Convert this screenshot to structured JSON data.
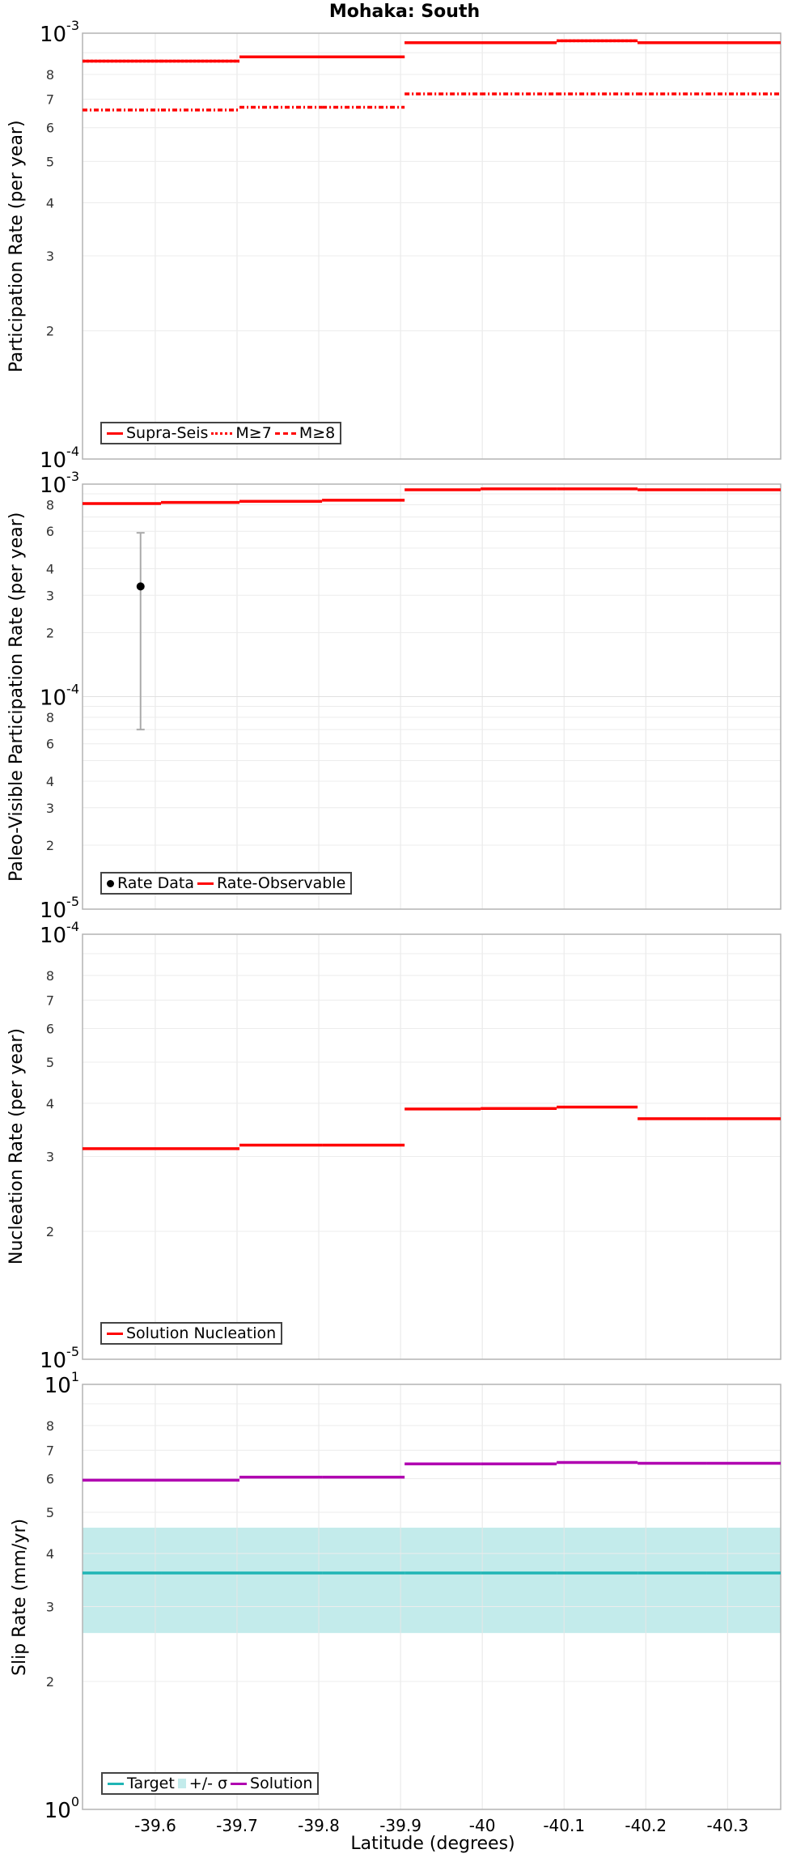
{
  "title": "Mohaka: South",
  "x_axis": {
    "label": "Latitude (degrees)",
    "ticks": [
      "-39.6",
      "-39.7",
      "-39.8",
      "-39.9",
      "-40",
      "-40.1",
      "-40.2",
      "-40.3"
    ],
    "range": [
      -39.511,
      -40.365
    ]
  },
  "panels": [
    {
      "ylabel": "Participation Rate (per year)",
      "ymin_label": "10",
      "ymin_exp": "-4",
      "ymax_label": "10",
      "ymax_exp": "-3",
      "minor_ticks": [
        "2",
        "3",
        "4",
        "5",
        "6",
        "7",
        "8"
      ],
      "legend": [
        {
          "label": "Supra-Seis",
          "style": "solid",
          "color": "#ff0000"
        },
        {
          "label": "M≥7",
          "style": "dot",
          "color": "#ff0000"
        },
        {
          "label": "M≥8",
          "style": "dashdot",
          "color": "#ff0000"
        }
      ]
    },
    {
      "ylabel": "Paleo-Visible Participation Rate (per year)",
      "ymin_label": "10",
      "ymin_exp": "-5",
      "mid_label": "10",
      "mid_exp": "-4",
      "ymax_label": "10",
      "ymax_exp": "-3",
      "minor_ticks": [
        "2",
        "3",
        "4",
        "6",
        "8"
      ],
      "legend": [
        {
          "label": "Rate Data",
          "style": "point",
          "color": "#000000"
        },
        {
          "label": "Rate-Observable",
          "style": "solid",
          "color": "#ff0000"
        }
      ]
    },
    {
      "ylabel": "Nucleation Rate (per year)",
      "ymin_label": "10",
      "ymin_exp": "-5",
      "ymax_label": "10",
      "ymax_exp": "-4",
      "minor_ticks": [
        "2",
        "3",
        "4",
        "5",
        "6",
        "7",
        "8"
      ],
      "legend": [
        {
          "label": "Solution Nucleation",
          "style": "solid",
          "color": "#ff0000"
        }
      ]
    },
    {
      "ylabel": "Slip Rate (mm/yr)",
      "ymin_label": "10",
      "ymin_exp": "0",
      "ymax_label": "10",
      "ymax_exp": "1",
      "minor_ticks": [
        "2",
        "3",
        "4",
        "5",
        "6",
        "7",
        "8"
      ],
      "legend": [
        {
          "label": "Target",
          "style": "solid",
          "color": "#1fb5b5"
        },
        {
          "label": "+/- σ",
          "style": "box",
          "color": "#c3ebeb"
        },
        {
          "label": "Solution",
          "style": "solid",
          "color": "#b000b0"
        }
      ]
    }
  ],
  "chart_data": [
    {
      "type": "line",
      "title": "Mohaka: South",
      "xlabel": "Latitude (degrees)",
      "ylabel": "Participation Rate (per year)",
      "yscale": "log",
      "ylim": [
        0.0001,
        0.001
      ],
      "x_edges": [
        -39.511,
        -39.607,
        -39.703,
        -39.804,
        -39.905,
        -39.998,
        -40.091,
        -40.19,
        -40.274,
        -40.365
      ],
      "series": [
        {
          "name": "Supra-Seis",
          "style": "solid",
          "values": [
            0.00086,
            0.00086,
            0.00088,
            0.00088,
            0.00095,
            0.00095,
            0.00096,
            0.00095,
            0.00095
          ]
        },
        {
          "name": "M≥7",
          "style": "dotted",
          "values": [
            0.00086,
            0.00086,
            0.00088,
            0.00088,
            0.00095,
            0.00095,
            0.00096,
            0.00095,
            0.00095
          ]
        },
        {
          "name": "M≥8",
          "style": "dashdot",
          "values": [
            0.00066,
            0.00066,
            0.00067,
            0.00067,
            0.00072,
            0.00072,
            0.00072,
            0.00072,
            0.00072
          ]
        }
      ],
      "grid": true,
      "legend_position": "lower-left"
    },
    {
      "type": "line",
      "ylabel": "Paleo-Visible Participation Rate (per year)",
      "yscale": "log",
      "ylim": [
        1e-05,
        0.001
      ],
      "x_edges": [
        -39.511,
        -39.607,
        -39.703,
        -39.804,
        -39.905,
        -39.998,
        -40.091,
        -40.19,
        -40.274,
        -40.365
      ],
      "series": [
        {
          "name": "Rate-Observable",
          "style": "solid",
          "values": [
            0.00081,
            0.00082,
            0.00083,
            0.00084,
            0.00094,
            0.00095,
            0.00095,
            0.00094,
            0.00094
          ]
        },
        {
          "name": "Rate Data",
          "style": "point",
          "x": [
            -39.582
          ],
          "y": [
            0.00033
          ],
          "error_low": [
            7e-05
          ],
          "error_high": [
            0.00059
          ]
        }
      ],
      "grid": true,
      "legend_position": "lower-left"
    },
    {
      "type": "line",
      "ylabel": "Nucleation Rate (per year)",
      "yscale": "log",
      "ylim": [
        1e-05,
        0.0001
      ],
      "x_edges": [
        -39.511,
        -39.607,
        -39.703,
        -39.804,
        -39.905,
        -39.998,
        -40.091,
        -40.19,
        -40.274,
        -40.365
      ],
      "series": [
        {
          "name": "Solution Nucleation",
          "style": "solid",
          "values": [
            3.13e-05,
            3.13e-05,
            3.19e-05,
            3.19e-05,
            3.88e-05,
            3.89e-05,
            3.92e-05,
            3.68e-05,
            3.68e-05
          ]
        }
      ],
      "grid": true,
      "legend_position": "lower-left"
    },
    {
      "type": "line",
      "ylabel": "Slip Rate (mm/yr)",
      "xlabel": "Latitude (degrees)",
      "yscale": "log",
      "ylim": [
        1,
        10
      ],
      "x_edges": [
        -39.511,
        -39.607,
        -39.703,
        -39.804,
        -39.905,
        -39.998,
        -40.091,
        -40.19,
        -40.274,
        -40.365
      ],
      "series": [
        {
          "name": "Target",
          "style": "solid",
          "values": [
            3.6,
            3.6,
            3.6,
            3.6,
            3.6,
            3.6,
            3.6,
            3.6,
            3.6
          ]
        },
        {
          "name": "+/- σ",
          "style": "band",
          "low": 2.6,
          "high": 4.6
        },
        {
          "name": "Solution",
          "style": "solid",
          "values": [
            5.95,
            5.95,
            6.05,
            6.05,
            6.5,
            6.5,
            6.55,
            6.52,
            6.52
          ]
        }
      ],
      "grid": true,
      "legend_position": "lower-left"
    }
  ]
}
